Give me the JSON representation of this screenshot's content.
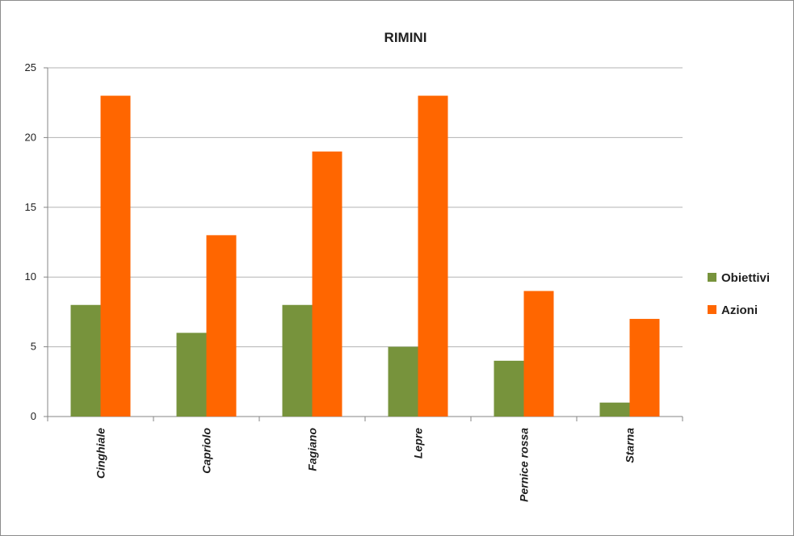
{
  "chart_data": {
    "type": "bar",
    "title": "RIMINI",
    "categories": [
      "Cinghiale",
      "Capriolo",
      "Fagiano",
      "Lepre",
      "Pernice rossa",
      "Starna"
    ],
    "series": [
      {
        "name": "Obiettivi",
        "color": "#77933c",
        "values": [
          8,
          6,
          8,
          5,
          4,
          1
        ]
      },
      {
        "name": "Azioni",
        "color": "#ff6600",
        "values": [
          23,
          13,
          19,
          23,
          9,
          7
        ]
      }
    ],
    "yticks": [
      "0",
      "5",
      "10",
      "15",
      "20",
      "25"
    ],
    "ylim": [
      0,
      25
    ],
    "xlabel": "",
    "ylabel": "",
    "grid": true,
    "legend_position": "right"
  }
}
